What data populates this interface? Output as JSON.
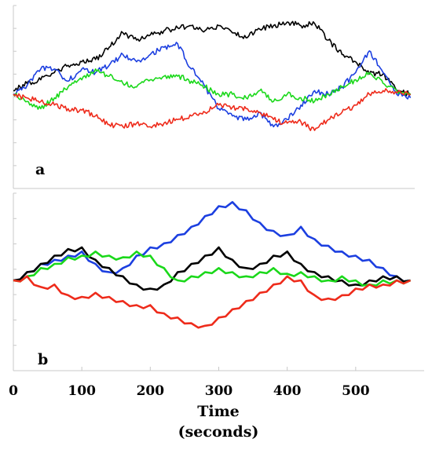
{
  "chart_data": {
    "type": "line",
    "xlabel": "Time (seconds)",
    "xlabel_lines": [
      "Time",
      "(seconds)"
    ],
    "xlim": [
      0,
      600
    ],
    "x_ticks": [
      0,
      100,
      200,
      300,
      400,
      500
    ],
    "x_tick_labels": [
      "0",
      "100",
      "200",
      "300",
      "400",
      "500"
    ],
    "panels": [
      {
        "label": "a",
        "ylim": [
          -1,
          1
        ],
        "grid": false,
        "series": [
          {
            "color": "#000000",
            "x": [
              0,
              20,
              40,
              60,
              80,
              100,
              120,
              140,
              160,
              180,
              200,
              220,
              240,
              260,
              280,
              300,
              320,
              340,
              360,
              380,
              400,
              420,
              440,
              460,
              480,
              500,
              520,
              540,
              560,
              580
            ],
            "y": [
              0.05,
              0.15,
              0.2,
              0.3,
              0.4,
              0.45,
              0.48,
              0.65,
              0.85,
              0.75,
              0.82,
              0.88,
              0.92,
              0.95,
              0.88,
              0.95,
              0.85,
              0.78,
              0.9,
              0.95,
              1.0,
              0.95,
              0.98,
              0.75,
              0.55,
              0.45,
              0.28,
              0.28,
              0.05,
              0.0
            ]
          },
          {
            "color": "#1c3fe0",
            "x": [
              0,
              20,
              40,
              60,
              80,
              100,
              120,
              140,
              160,
              180,
              200,
              220,
              240,
              260,
              280,
              300,
              320,
              340,
              360,
              380,
              400,
              420,
              440,
              460,
              480,
              500,
              520,
              540,
              560,
              580
            ],
            "y": [
              0.0,
              0.12,
              0.35,
              0.35,
              0.18,
              0.35,
              0.3,
              0.4,
              0.55,
              0.45,
              0.55,
              0.65,
              0.7,
              0.35,
              0.1,
              -0.2,
              -0.3,
              -0.35,
              -0.25,
              -0.45,
              -0.35,
              -0.15,
              0.05,
              0.0,
              0.1,
              0.3,
              0.6,
              0.3,
              0.0,
              -0.05
            ]
          },
          {
            "color": "#1ad81a",
            "x": [
              0,
              20,
              40,
              60,
              80,
              100,
              120,
              140,
              160,
              180,
              200,
              220,
              240,
              260,
              280,
              300,
              320,
              340,
              360,
              380,
              400,
              420,
              440,
              460,
              480,
              500,
              520,
              540,
              560,
              580
            ],
            "y": [
              0.0,
              -0.1,
              -0.2,
              -0.05,
              0.1,
              0.2,
              0.35,
              0.25,
              0.15,
              0.1,
              0.2,
              0.25,
              0.25,
              0.18,
              0.1,
              0.0,
              0.0,
              -0.05,
              0.05,
              -0.1,
              0.0,
              -0.05,
              -0.1,
              0.0,
              0.1,
              0.2,
              0.3,
              0.15,
              0.05,
              0.0
            ]
          },
          {
            "color": "#ee2b1b",
            "x": [
              0,
              20,
              40,
              60,
              80,
              100,
              120,
              140,
              160,
              180,
              200,
              220,
              240,
              260,
              280,
              300,
              320,
              340,
              360,
              380,
              400,
              420,
              440,
              460,
              480,
              500,
              520,
              540,
              560,
              580
            ],
            "y": [
              0.0,
              -0.05,
              -0.1,
              -0.15,
              -0.2,
              -0.22,
              -0.3,
              -0.42,
              -0.45,
              -0.4,
              -0.45,
              -0.4,
              -0.35,
              -0.3,
              -0.25,
              -0.15,
              -0.18,
              -0.2,
              -0.25,
              -0.35,
              -0.4,
              -0.38,
              -0.5,
              -0.35,
              -0.25,
              -0.15,
              0.0,
              0.05,
              0.02,
              0.0
            ]
          }
        ]
      },
      {
        "label": "b",
        "ylim": [
          -1,
          1
        ],
        "grid": false,
        "series": [
          {
            "color": "#1c3fe0",
            "x": [
              0,
              20,
              40,
              60,
              80,
              100,
              120,
              140,
              160,
              180,
              200,
              220,
              240,
              260,
              280,
              300,
              320,
              340,
              360,
              380,
              400,
              420,
              440,
              460,
              480,
              500,
              520,
              540,
              560,
              580
            ],
            "y": [
              0.0,
              0.1,
              0.2,
              0.25,
              0.3,
              0.35,
              0.2,
              0.1,
              0.15,
              0.3,
              0.4,
              0.45,
              0.55,
              0.65,
              0.78,
              0.9,
              0.95,
              0.85,
              0.7,
              0.6,
              0.55,
              0.65,
              0.5,
              0.42,
              0.35,
              0.3,
              0.25,
              0.15,
              0.05,
              0.0
            ]
          },
          {
            "color": "#000000",
            "x": [
              0,
              20,
              40,
              60,
              80,
              100,
              120,
              140,
              160,
              180,
              200,
              220,
              240,
              260,
              280,
              300,
              320,
              340,
              360,
              380,
              400,
              420,
              440,
              460,
              480,
              500,
              520,
              540,
              560,
              580
            ],
            "y": [
              0.0,
              0.1,
              0.2,
              0.3,
              0.38,
              0.4,
              0.25,
              0.15,
              0.05,
              -0.05,
              -0.1,
              -0.05,
              0.1,
              0.2,
              0.3,
              0.4,
              0.25,
              0.15,
              0.2,
              0.3,
              0.35,
              0.2,
              0.1,
              0.05,
              0.0,
              -0.05,
              0.0,
              0.05,
              0.05,
              0.0
            ]
          },
          {
            "color": "#1ad81a",
            "x": [
              0,
              20,
              40,
              60,
              80,
              100,
              120,
              140,
              160,
              180,
              200,
              220,
              240,
              260,
              280,
              300,
              320,
              340,
              360,
              380,
              400,
              420,
              440,
              460,
              480,
              500,
              520,
              540,
              560,
              580
            ],
            "y": [
              0.0,
              0.05,
              0.15,
              0.2,
              0.28,
              0.3,
              0.35,
              0.3,
              0.28,
              0.35,
              0.3,
              0.15,
              0.0,
              0.05,
              0.1,
              0.15,
              0.1,
              0.05,
              0.1,
              0.15,
              0.08,
              0.1,
              0.05,
              0.0,
              0.05,
              0.0,
              -0.05,
              0.0,
              0.0,
              0.0
            ]
          },
          {
            "color": "#ee2b1b",
            "x": [
              0,
              20,
              40,
              60,
              80,
              100,
              120,
              140,
              160,
              180,
              200,
              220,
              240,
              260,
              280,
              300,
              320,
              340,
              360,
              380,
              400,
              420,
              440,
              460,
              480,
              500,
              520,
              540,
              560,
              580
            ],
            "y": [
              0.0,
              0.05,
              -0.08,
              -0.05,
              -0.18,
              -0.2,
              -0.15,
              -0.2,
              -0.25,
              -0.3,
              -0.3,
              -0.4,
              -0.45,
              -0.52,
              -0.55,
              -0.45,
              -0.35,
              -0.25,
              -0.15,
              -0.05,
              0.05,
              0.0,
              -0.18,
              -0.22,
              -0.18,
              -0.1,
              -0.05,
              -0.05,
              0.0,
              0.0
            ]
          }
        ]
      }
    ]
  }
}
